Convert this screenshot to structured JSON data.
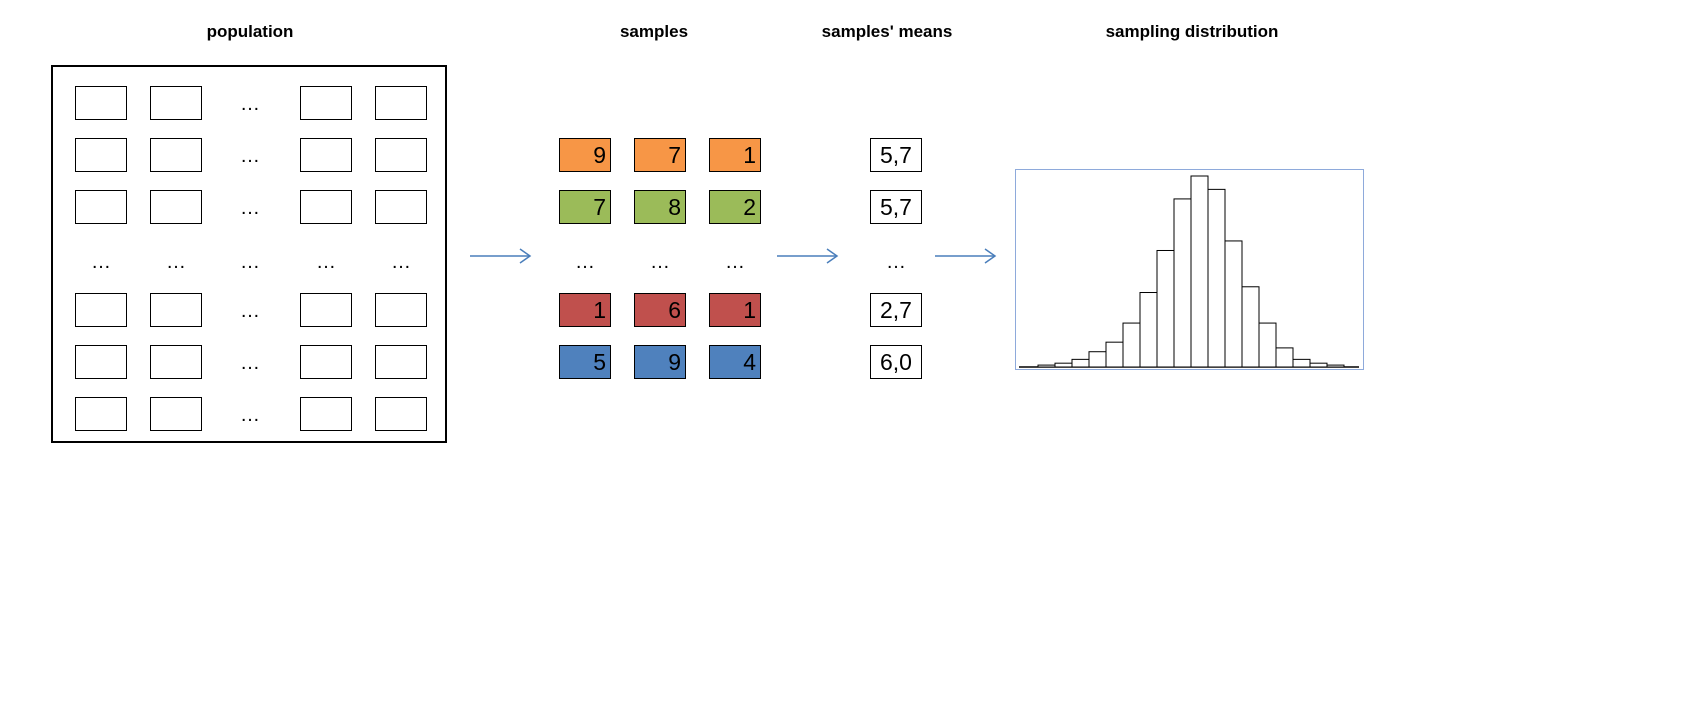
{
  "titles": {
    "population": "population",
    "samples": "samples",
    "means": "samples' means",
    "sampling": "sampling distribution"
  },
  "ellipsis": "…",
  "samples": [
    {
      "values": [
        "9",
        "7",
        "1"
      ],
      "color": "#f79646"
    },
    {
      "values": [
        "7",
        "8",
        "2"
      ],
      "color": "#9bbb59"
    },
    {
      "values": [
        "1",
        "6",
        "1"
      ],
      "color": "#c0504d"
    },
    {
      "values": [
        "5",
        "9",
        "4"
      ],
      "color": "#4f81bd"
    }
  ],
  "means": [
    "5,7",
    "5,7",
    "2,7",
    "6,0"
  ],
  "colors": {
    "arrow": "#4a7ebb",
    "histogram_frame": "#8eaadb"
  },
  "histogram_data": {
    "type": "histogram",
    "relative_heights": [
      1,
      2,
      4,
      8,
      13,
      23,
      39,
      61,
      88,
      100,
      93,
      66,
      42,
      23,
      10,
      4,
      2,
      1
    ]
  }
}
